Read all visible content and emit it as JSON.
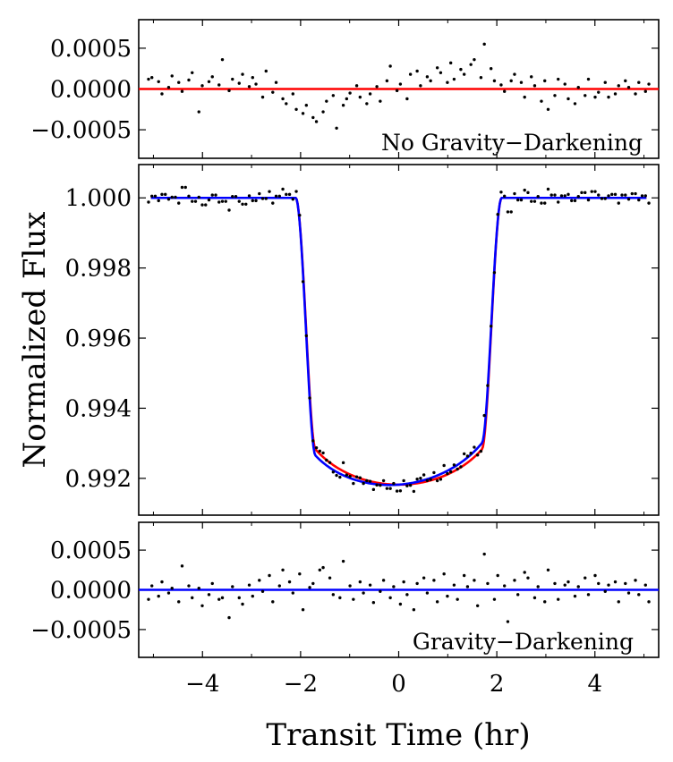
{
  "chart_data": {
    "type": "scatter",
    "xlabel": "Transit Time (hr)",
    "ylabel": "Normalized Flux",
    "x_ticks": [
      "−4",
      "−2",
      "0",
      "2",
      "4"
    ],
    "x_tick_values": [
      -4,
      -2,
      0,
      2,
      4
    ],
    "xlim": [
      -5.3,
      5.3
    ],
    "panels": [
      {
        "id": "top",
        "kind": "residual",
        "label": "No Gravity−Darkening",
        "ylim": [
          -0.00085,
          0.00085
        ],
        "y_ticks": [
          "0.0005",
          "0.0000",
          "−0.0005"
        ],
        "y_tick_values": [
          0.0005,
          0.0,
          -0.0005
        ],
        "model_color": "#ff0000",
        "residuals": [
          0.00012,
          0.00014,
          9e-05,
          -6e-05,
          2e-05,
          0.00016,
          8e-05,
          -3e-05,
          0.00011,
          0.0002,
          -0.00028,
          4e-05,
          9e-05,
          0.00015,
          5e-05,
          0.00036,
          -2e-05,
          0.00012,
          7e-05,
          0.00018,
          3e-05,
          0.00014,
          6e-05,
          -0.0001,
          0.00022,
          -4e-05,
          8e-05,
          -0.00012,
          -0.00018,
          -6e-05,
          -0.00025,
          -0.0003,
          -0.0002,
          -0.00035,
          -0.0004,
          -0.00028,
          -0.00015,
          -8e-05,
          -0.00048,
          -0.0002,
          -0.00012,
          -5e-05,
          4e-05,
          -0.0001,
          -0.00018,
          -6e-05,
          3e-05,
          -0.00015,
          0.0001,
          0.00028,
          -2e-05,
          6e-05,
          -0.00012,
          0.00018,
          0.00022,
          4e-05,
          0.00015,
          0.0001,
          0.00026,
          0.0002,
          8e-05,
          0.00032,
          0.00012,
          0.00024,
          0.00018,
          0.0003,
          0.00036,
          0.00014,
          0.00055,
          0.00025,
          0.0001,
          5e-05,
          -3e-05,
          0.0001,
          0.00018,
          8e-05,
          -0.0001,
          0.00015,
          4e-05,
          -0.00015,
          0.0001,
          -0.00025,
          -8e-05,
          0.00012,
          6e-05,
          -0.00012,
          -0.00018,
          2e-05,
          -8e-05,
          0.00012,
          -0.0001,
          -4e-05,
          8e-05,
          -0.0001,
          -6e-05,
          4e-05,
          0.0001,
          2e-05,
          -6e-05,
          8e-05,
          -3e-05,
          6e-05
        ]
      },
      {
        "id": "middle",
        "kind": "lightcurve",
        "ylim": [
          0.99095,
          1.00095
        ],
        "y_ticks": [
          "1.000",
          "0.998",
          "0.996",
          "0.994",
          "0.992"
        ],
        "y_tick_values": [
          1.0,
          0.998,
          0.996,
          0.994,
          0.992
        ],
        "series": [
          {
            "name": "No Gravity−Darkening model",
            "color": "#ff0000",
            "depth": 0.00818,
            "t14": 4.2,
            "ingress": 0.4,
            "ld_u": 0.3,
            "skew": 0.0
          },
          {
            "name": "Gravity−Darkening model",
            "color": "#0000ff",
            "depth": 0.00818,
            "t14": 4.2,
            "ingress": 0.4,
            "ld_u": 0.3,
            "skew": 0.00022
          }
        ]
      },
      {
        "id": "bottom",
        "kind": "residual",
        "label": "Gravity−Darkening",
        "ylim": [
          -0.00085,
          0.00085
        ],
        "y_ticks": [
          "0.0005",
          "0.0000",
          "−0.0005"
        ],
        "y_tick_values": [
          0.0005,
          0.0,
          -0.0005
        ],
        "model_color": "#0000ff",
        "residuals": [
          -0.00012,
          5e-05,
          -8e-05,
          0.0001,
          -4e-05,
          2e-05,
          -0.00015,
          0.0003,
          5e-05,
          -0.0001,
          2e-05,
          -0.0002,
          -6e-05,
          8e-05,
          -0.00012,
          -0.0001,
          -0.00035,
          4e-05,
          -0.0001,
          -0.00018,
          6e-05,
          -8e-05,
          0.00012,
          -2e-05,
          0.00018,
          -0.00015,
          5e-05,
          0.00025,
          0.0001,
          -4e-05,
          0.0002,
          -0.00025,
          3e-05,
          8e-05,
          0.00025,
          0.00028,
          0.00015,
          -6e-05,
          -0.0001,
          0.00036,
          5e-05,
          -0.00012,
          0.0001,
          -4e-05,
          6e-05,
          -0.00016,
          -2e-05,
          0.00012,
          -0.0001,
          4e-05,
          -0.00018,
          0.0001,
          -6e-05,
          -0.00025,
          8e-05,
          0.00015,
          -4e-05,
          0.00012,
          -0.00015,
          0.0002,
          -8e-05,
          6e-05,
          -0.00012,
          0.00018,
          4e-05,
          0.00012,
          -0.0002,
          0.00045,
          8e-05,
          -0.00012,
          0.00018,
          5e-05,
          -0.0004,
          0.00012,
          -6e-05,
          0.00022,
          0.00015,
          -0.0001,
          4e-05,
          -0.00015,
          0.00025,
          8e-05,
          -0.00012,
          6e-05,
          0.0001,
          -8e-05,
          4e-05,
          0.00015,
          -6e-05,
          0.00018,
          8e-05,
          -2e-05,
          6e-05,
          0.0001,
          -0.00015,
          8e-05,
          -4e-05,
          0.00012,
          -6e-05,
          6e-05,
          -0.00015
        ]
      }
    ]
  }
}
